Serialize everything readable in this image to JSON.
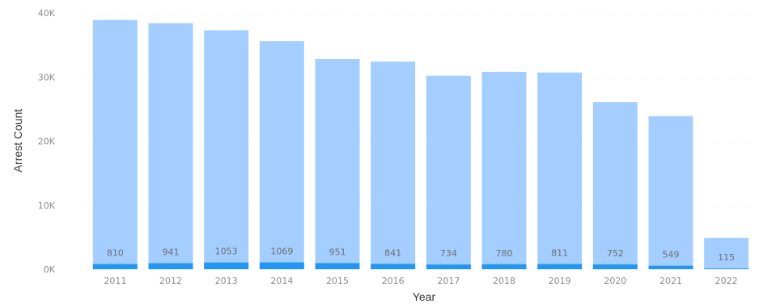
{
  "chart_data": {
    "type": "bar",
    "title": "",
    "xlabel": "Year",
    "ylabel": "Arrest Count",
    "ylim": [
      0,
      40000
    ],
    "yticks": [
      0,
      10000,
      20000,
      30000,
      40000
    ],
    "ytick_labels": [
      "0K",
      "10K",
      "20K",
      "30K",
      "40K"
    ],
    "grid": true,
    "categories": [
      "2011",
      "2012",
      "2013",
      "2014",
      "2015",
      "2016",
      "2017",
      "2018",
      "2019",
      "2020",
      "2021",
      "2022"
    ],
    "series": [
      {
        "values": [
          38900,
          38400,
          37300,
          35600,
          32800,
          32400,
          30200,
          30800,
          30700,
          26100,
          23900,
          4900
        ],
        "color": "#a3ceff"
      },
      {
        "values": [
          810,
          941,
          1053,
          1069,
          951,
          841,
          734,
          780,
          811,
          752,
          549,
          115
        ],
        "color": "#2196f3",
        "labels": [
          "810",
          "941",
          "1053",
          "1069",
          "951",
          "841",
          "734",
          "780",
          "811",
          "752",
          "549",
          "115"
        ]
      }
    ]
  }
}
